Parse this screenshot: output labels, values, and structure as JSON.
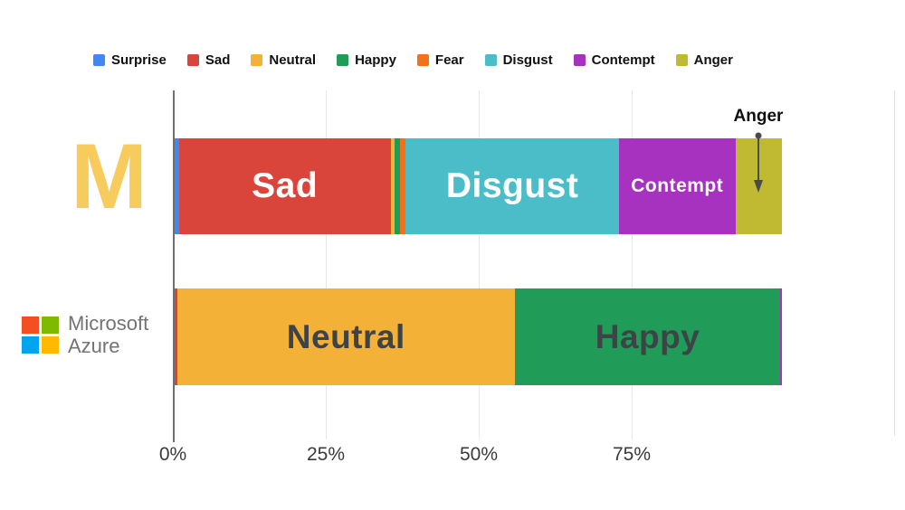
{
  "page": {
    "background": "#ffffff"
  },
  "logos": {
    "m": {
      "text": "M",
      "color": "#F8CC5C"
    },
    "azure": {
      "line1": "Microsoft",
      "line2": "Azure",
      "text_color": "#737373",
      "square_colors": [
        "#F25022",
        "#7FBA00",
        "#00A4EF",
        "#FFB900"
      ]
    }
  },
  "chart_data": {
    "type": "bar",
    "orientation": "horizontal",
    "stacked": true,
    "unit": "percent",
    "grid": true,
    "legend_position": "top",
    "x_ticks": [
      "0%",
      "25%",
      "50%",
      "75%"
    ],
    "x_tick_values": [
      0,
      25,
      50,
      75
    ],
    "x_range": [
      0,
      100
    ],
    "legend": [
      "Surprise",
      "Sad",
      "Neutral",
      "Happy",
      "Fear",
      "Disgust",
      "Contempt",
      "Anger"
    ],
    "colors": {
      "Surprise": "#4285F4",
      "Sad": "#D9453B",
      "Neutral": "#F3B237",
      "Happy": "#219B58",
      "Fear": "#F4711C",
      "Disgust": "#4BBDC9",
      "Contempt": "#A632BF",
      "Anger": "#C0B932"
    },
    "dark_label_emotions": [
      "Neutral",
      "Happy"
    ],
    "annotation": {
      "text": "Anger",
      "row": 0,
      "emotion": "Anger"
    },
    "rows": [
      {
        "label": "M",
        "segments": [
          {
            "emotion": "Surprise",
            "value": 0.7,
            "label": ""
          },
          {
            "emotion": "Sad",
            "value": 34.6,
            "label": "Sad"
          },
          {
            "emotion": "Neutral",
            "value": 0.7,
            "label": ""
          },
          {
            "emotion": "Happy",
            "value": 0.9,
            "label": ""
          },
          {
            "emotion": "Fear",
            "value": 0.9,
            "label": ""
          },
          {
            "emotion": "Disgust",
            "value": 34.8,
            "label": "Disgust"
          },
          {
            "emotion": "Contempt",
            "value": 19.1,
            "label": "Contempt"
          },
          {
            "emotion": "Anger",
            "value": 7.6,
            "label": ""
          }
        ]
      },
      {
        "label": "Microsoft Azure",
        "segments": [
          {
            "emotion": "Sad",
            "value": 0.4,
            "label": ""
          },
          {
            "emotion": "Neutral",
            "value": 55.2,
            "label": "Neutral"
          },
          {
            "emotion": "Happy",
            "value": 43.4,
            "label": "Happy"
          },
          {
            "emotion": "Contempt",
            "value": 0.3,
            "label": ""
          }
        ]
      }
    ]
  }
}
